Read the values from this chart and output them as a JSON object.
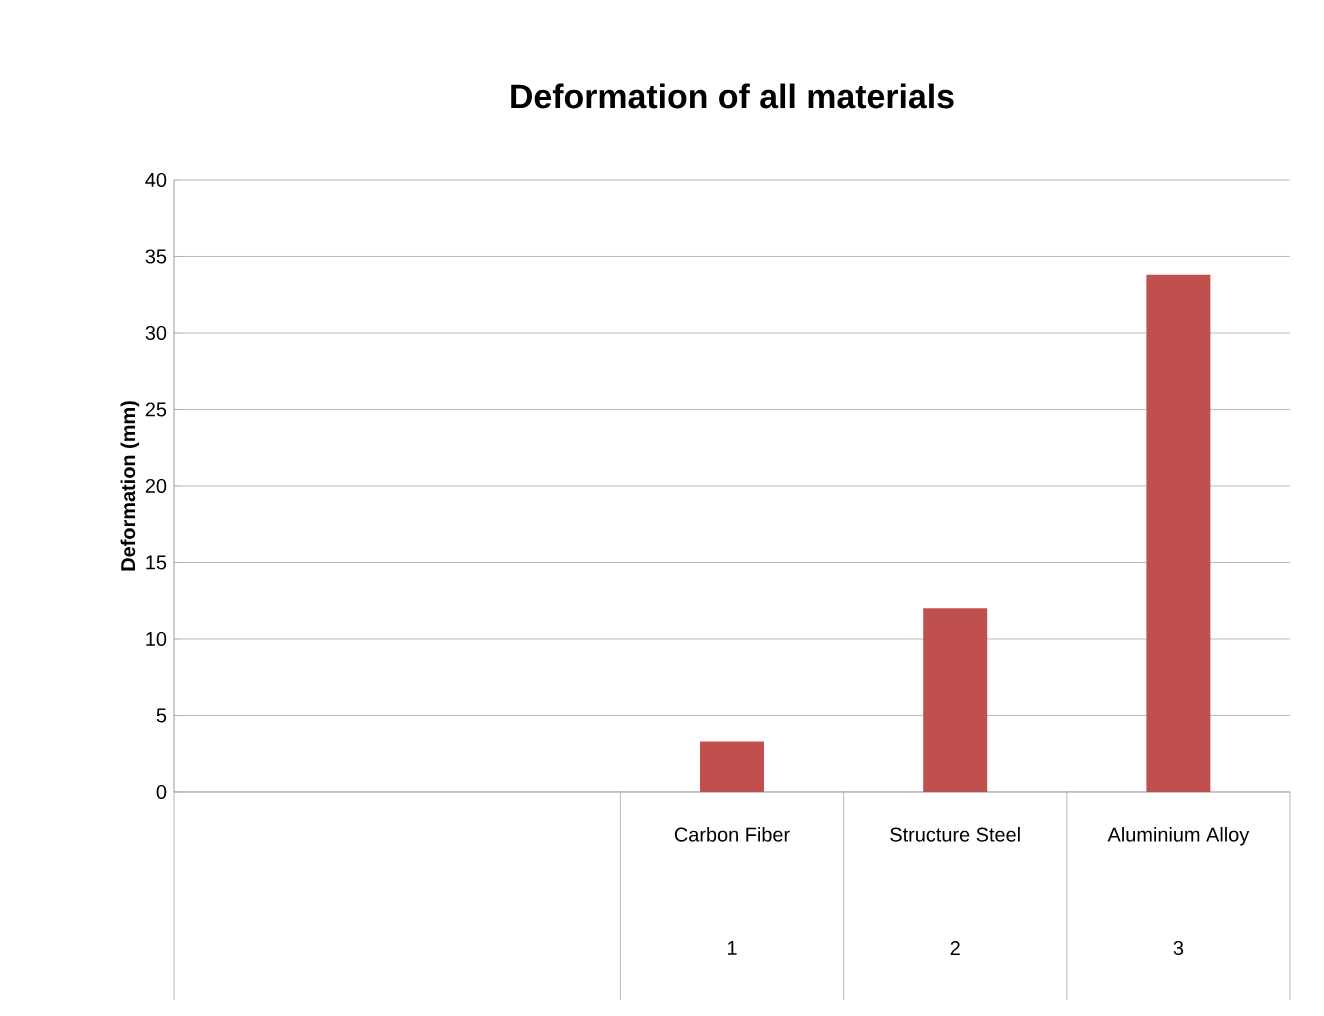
{
  "chart_data": {
    "type": "bar",
    "title": "Deformation of all materials",
    "ylabel": "Deformation (mm)",
    "categories": [
      null,
      null,
      "Carbon Fiber",
      "Structure Steel",
      "Aluminium Alloy"
    ],
    "values": [
      null,
      null,
      3.3,
      12,
      33.8
    ],
    "color": "#c0504d",
    "ylim": [
      0,
      40
    ],
    "yticks": [
      0,
      5,
      10,
      15,
      20,
      25,
      30,
      35,
      40
    ],
    "grid": "y",
    "annotations": [
      "1",
      "2",
      "3"
    ]
  }
}
